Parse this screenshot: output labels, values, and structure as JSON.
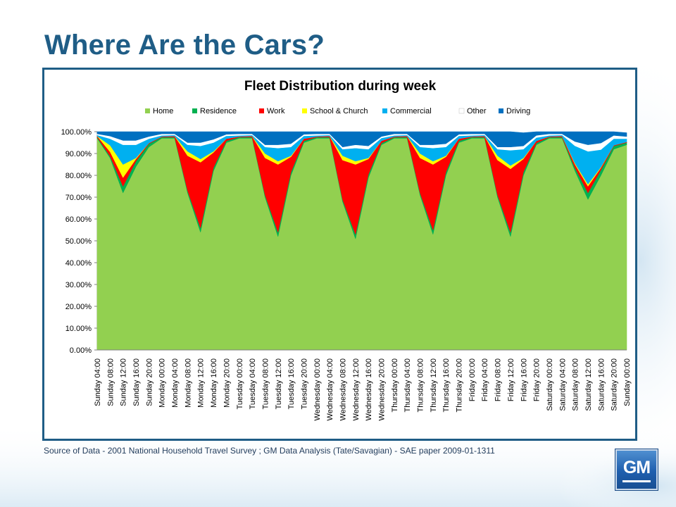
{
  "slide": {
    "title": "Where Are the Cars?",
    "source_note": "Source of Data - 2001 National Household Travel Survey ; GM Data Analysis (Tate/Savagian) - SAE paper 2009-01-1311",
    "logo_text": "GM",
    "accent_color": "#1f5d86"
  },
  "chart_data": {
    "type": "area",
    "stacked": true,
    "title": "Fleet Distribution during week",
    "xlabel": "",
    "ylabel": "",
    "ylim": [
      0,
      100
    ],
    "y_ticks": [
      "0.00%",
      "10.00%",
      "20.00%",
      "30.00%",
      "40.00%",
      "50.00%",
      "60.00%",
      "70.00%",
      "80.00%",
      "90.00%",
      "100.00%"
    ],
    "grid": false,
    "legend_position": "top",
    "categories": [
      "Sunday 04:00",
      "Sunday 08:00",
      "Sunday 12:00",
      "Sunday 16:00",
      "Sunday 20:00",
      "Monday 00:00",
      "Monday 04:00",
      "Monday 08:00",
      "Monday 12:00",
      "Monday 16:00",
      "Monday 20:00",
      "Tuesday 00:00",
      "Tuesday 04:00",
      "Tuesday 08:00",
      "Tuesday 12:00",
      "Tuesday 16:00",
      "Tuesday 20:00",
      "Wednesday 00:00",
      "Wednesday 04:00",
      "Wednesday 08:00",
      "Wednesday 12:00",
      "Wednesday 16:00",
      "Wednesday 20:00",
      "Thursday 00:00",
      "Thursday 04:00",
      "Thursday 08:00",
      "Thursday 12:00",
      "Thursday 16:00",
      "Thursday 20:00",
      "Friday 00:00",
      "Friday 04:00",
      "Friday 08:00",
      "Friday 12:00",
      "Friday 16:00",
      "Friday 20:00",
      "Saturday 00:00",
      "Saturday 04:00",
      "Saturday 08:00",
      "Saturday 12:00",
      "Saturday 16:00",
      "Saturday 20:00",
      "Sunday 00:00"
    ],
    "series": [
      {
        "name": "Home",
        "color": "#92d050",
        "values": [
          97,
          88,
          72,
          84,
          93,
          97,
          97,
          72,
          54,
          82,
          95,
          97,
          97,
          70,
          52,
          80,
          95,
          97,
          97,
          68,
          51,
          79,
          94,
          97,
          97,
          71,
          53,
          80,
          95,
          97,
          97,
          70,
          52,
          80,
          94,
          97,
          97,
          82,
          69,
          80,
          92,
          94
        ]
      },
      {
        "name": "Residence",
        "color": "#00b050",
        "values": [
          0.5,
          0.8,
          3,
          2.5,
          1.5,
          0.5,
          0.5,
          1,
          2,
          1.5,
          0.8,
          0.5,
          0.5,
          1,
          2,
          1.5,
          0.8,
          0.5,
          0.5,
          1,
          2,
          1.5,
          0.8,
          0.5,
          0.5,
          1,
          2,
          1.5,
          0.8,
          0.5,
          0.5,
          1,
          2,
          1.5,
          0.8,
          0.5,
          0.5,
          1.5,
          3,
          2.5,
          1.5,
          1
        ]
      },
      {
        "name": "Work",
        "color": "#ff0000",
        "values": [
          0.5,
          2,
          4,
          1,
          0.3,
          0.3,
          0.5,
          16,
          30,
          7,
          1,
          0.3,
          0.5,
          17,
          31,
          7,
          1,
          0.3,
          0.5,
          18,
          32,
          7,
          1,
          0.3,
          0.5,
          16,
          30,
          7,
          1,
          0.3,
          0.5,
          16,
          29,
          6,
          1,
          0.3,
          0.5,
          1.5,
          3,
          1,
          0.3,
          0.3
        ]
      },
      {
        "name": "School & Church",
        "color": "#ffff00",
        "values": [
          0,
          3,
          6,
          0.5,
          0,
          0,
          0,
          2,
          1.5,
          0.5,
          0,
          0,
          0,
          2,
          1.5,
          0.5,
          0,
          0,
          0,
          2,
          1.5,
          0.5,
          0,
          0,
          0,
          2,
          1.5,
          0.5,
          0,
          0,
          0,
          2,
          1.5,
          0.5,
          0,
          0,
          0,
          0.5,
          1,
          0.3,
          0,
          0
        ]
      },
      {
        "name": "Commercial",
        "color": "#00b0f0",
        "values": [
          0.5,
          3,
          9,
          6,
          2,
          0.5,
          0.5,
          3,
          6,
          4,
          1.3,
          0.5,
          0.5,
          3,
          6,
          4,
          1.3,
          0.5,
          0.5,
          3,
          6,
          4,
          1.3,
          0.5,
          0.5,
          3,
          6,
          4,
          1.3,
          0.5,
          0.5,
          3,
          7,
          4,
          1.5,
          0.5,
          0.5,
          8,
          15,
          8,
          3,
          1.5
        ]
      },
      {
        "name": "Other",
        "color": "#ffffff",
        "values": [
          0.5,
          1.2,
          2,
          2,
          1,
          0.7,
          0.5,
          1,
          1.5,
          1.5,
          0.7,
          0.7,
          0.5,
          1,
          1.5,
          1.5,
          0.7,
          0.7,
          0.5,
          1,
          1.5,
          1.5,
          0.7,
          0.7,
          0.5,
          1,
          1.5,
          1.5,
          0.7,
          0.7,
          0.5,
          1,
          1.5,
          1.5,
          1,
          0.7,
          0.5,
          2,
          3,
          3,
          1.5,
          1
        ]
      },
      {
        "name": "Driving",
        "color": "#0070c0",
        "values": [
          1.5,
          2.2,
          4,
          4,
          2.2,
          1,
          1.5,
          5,
          5,
          3.5,
          1.5,
          1,
          1.5,
          6,
          6,
          5.5,
          1.5,
          1,
          1.5,
          7,
          6,
          6.5,
          2.2,
          1,
          1.5,
          6,
          6,
          5.5,
          1.5,
          1,
          1.5,
          7,
          7,
          6,
          2.7,
          1,
          1.5,
          5,
          6,
          5.2,
          1.7,
          1.7
        ]
      }
    ]
  }
}
